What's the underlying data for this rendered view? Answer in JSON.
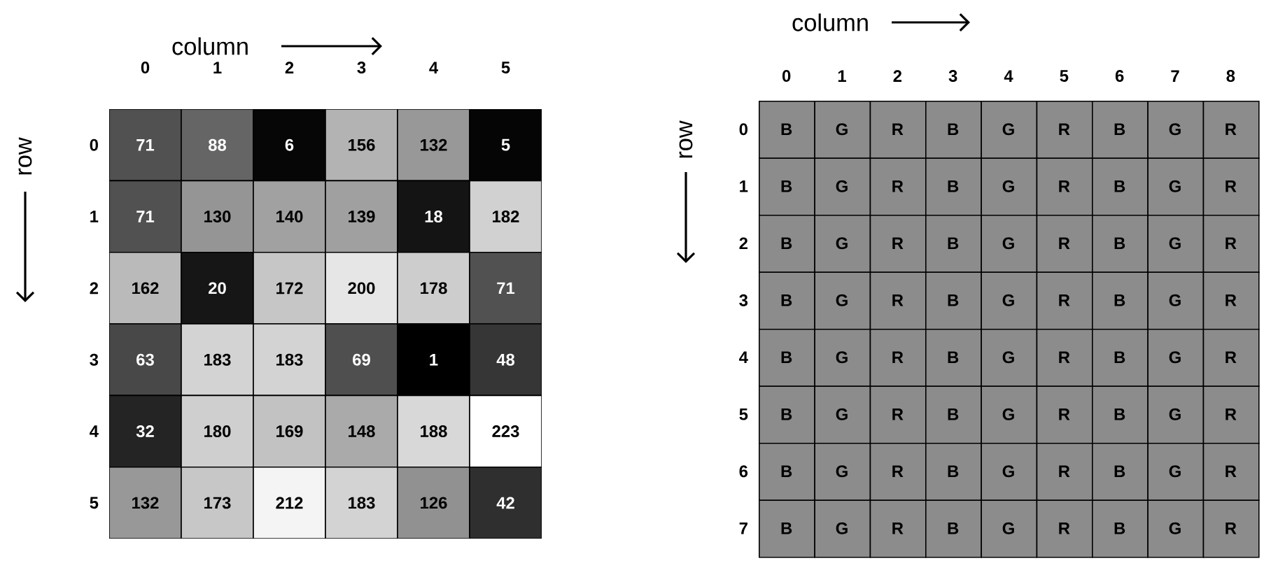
{
  "chart_data": [
    {
      "type": "heatmap",
      "xlabel": "column",
      "ylabel": "row",
      "categories": [
        "0",
        "1",
        "2",
        "3",
        "4",
        "5"
      ],
      "y_categories": [
        "0",
        "1",
        "2",
        "3",
        "4",
        "5"
      ],
      "cells": [
        [
          71,
          88,
          6,
          156,
          132,
          5
        ],
        [
          71,
          130,
          140,
          139,
          18,
          182
        ],
        [
          162,
          20,
          172,
          200,
          178,
          71
        ],
        [
          63,
          183,
          183,
          69,
          1,
          48
        ],
        [
          32,
          180,
          169,
          148,
          188,
          223
        ],
        [
          132,
          173,
          212,
          183,
          126,
          42
        ]
      ],
      "data_labels": true
    },
    {
      "type": "heatmap",
      "xlabel": "column",
      "ylabel": "row",
      "categories": [
        "0",
        "1",
        "2",
        "3",
        "4",
        "5",
        "6",
        "7",
        "8"
      ],
      "y_categories": [
        "0",
        "1",
        "2",
        "3",
        "4",
        "5",
        "6",
        "7"
      ],
      "cells": [
        [
          null,
          null,
          null,
          null,
          null,
          null,
          null,
          null,
          null
        ],
        [
          null,
          null,
          null,
          null,
          null,
          null,
          null,
          null,
          null
        ],
        [
          null,
          null,
          null,
          null,
          null,
          null,
          null,
          null,
          null
        ],
        [
          null,
          null,
          null,
          null,
          null,
          null,
          null,
          null,
          null
        ],
        [
          null,
          null,
          null,
          null,
          null,
          null,
          null,
          null,
          null
        ],
        [
          null,
          null,
          null,
          null,
          null,
          null,
          null,
          null,
          null
        ],
        [
          null,
          null,
          null,
          null,
          null,
          null,
          null,
          null,
          null
        ],
        [
          null,
          null,
          null,
          null,
          null,
          null,
          null,
          null,
          null
        ]
      ],
      "cell_labels": [
        [
          "B",
          "G",
          "R",
          "B",
          "G",
          "R",
          "B",
          "G",
          "R"
        ],
        [
          "B",
          "G",
          "R",
          "B",
          "G",
          "R",
          "B",
          "G",
          "R"
        ],
        [
          "B",
          "G",
          "R",
          "B",
          "G",
          "R",
          "B",
          "G",
          "R"
        ],
        [
          "B",
          "G",
          "R",
          "B",
          "G",
          "R",
          "B",
          "G",
          "R"
        ],
        [
          "B",
          "G",
          "R",
          "B",
          "G",
          "R",
          "B",
          "G",
          "R"
        ],
        [
          "B",
          "G",
          "R",
          "B",
          "G",
          "R",
          "B",
          "G",
          "R"
        ],
        [
          "B",
          "G",
          "R",
          "B",
          "G",
          "R",
          "B",
          "G",
          "R"
        ],
        [
          "B",
          "G",
          "R",
          "B",
          "G",
          "R",
          "B",
          "G",
          "R"
        ]
      ]
    }
  ]
}
